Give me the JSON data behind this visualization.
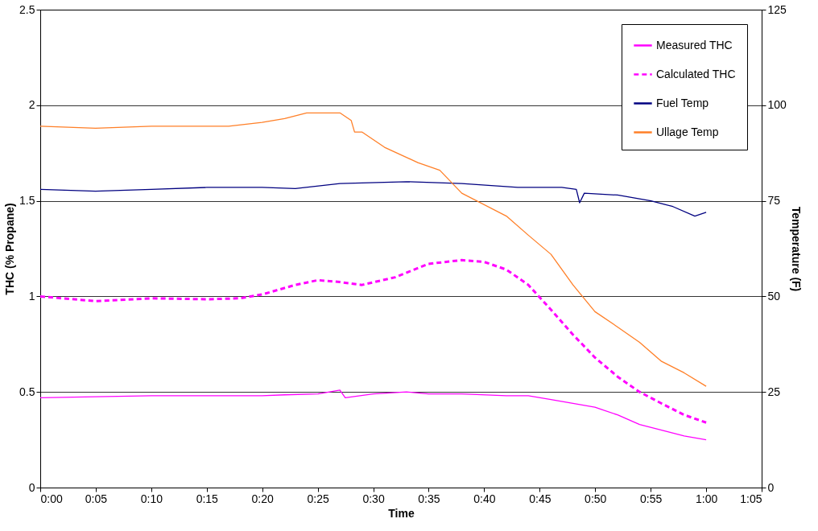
{
  "chart_data": {
    "type": "line",
    "xlabel": "Time",
    "ylabel": "THC (% Propane)",
    "y2label": "Temperature (F)",
    "xlim": [
      0,
      1.0833
    ],
    "xticks": [
      {
        "value": 0,
        "label": "0:00"
      },
      {
        "value": 0.0833,
        "label": "0:05"
      },
      {
        "value": 0.1667,
        "label": "0:10"
      },
      {
        "value": 0.25,
        "label": "0:15"
      },
      {
        "value": 0.3333,
        "label": "0:20"
      },
      {
        "value": 0.4167,
        "label": "0:25"
      },
      {
        "value": 0.5,
        "label": "0:30"
      },
      {
        "value": 0.5833,
        "label": "0:35"
      },
      {
        "value": 0.6667,
        "label": "0:40"
      },
      {
        "value": 0.75,
        "label": "0:45"
      },
      {
        "value": 0.8333,
        "label": "0:50"
      },
      {
        "value": 0.9167,
        "label": "0:55"
      },
      {
        "value": 1,
        "label": "1:00"
      },
      {
        "value": 1.0833,
        "label": "1:05"
      }
    ],
    "ylim": [
      0,
      2.5
    ],
    "yticks": [
      0,
      0.5,
      1,
      1.5,
      2,
      2.5
    ],
    "y2lim": [
      0,
      125
    ],
    "y2ticks": [
      0,
      25,
      50,
      75,
      100,
      125
    ],
    "grid": "y",
    "legend": "top right",
    "series": [
      {
        "name": "Measured THC",
        "color": "#ff00ff",
        "line_style": "solid",
        "x": [
          0,
          0.083,
          0.167,
          0.25,
          0.333,
          0.367,
          0.417,
          0.45,
          0.458,
          0.5,
          0.55,
          0.583,
          0.633,
          0.7,
          0.733,
          0.767,
          0.8,
          0.833,
          0.867,
          0.9,
          0.933,
          0.967,
          1.0
        ],
        "values": [
          0.47,
          0.475,
          0.48,
          0.48,
          0.48,
          0.485,
          0.49,
          0.51,
          0.47,
          0.49,
          0.5,
          0.49,
          0.49,
          0.48,
          0.48,
          0.46,
          0.44,
          0.42,
          0.38,
          0.33,
          0.3,
          0.27,
          0.25
        ]
      },
      {
        "name": "Calculated THC",
        "color": "#ff00ff",
        "line_style": "dashed",
        "x": [
          0,
          0.083,
          0.167,
          0.25,
          0.3,
          0.333,
          0.383,
          0.417,
          0.45,
          0.483,
          0.533,
          0.583,
          0.633,
          0.667,
          0.7,
          0.733,
          0.767,
          0.8,
          0.833,
          0.867,
          0.9,
          0.933,
          0.967,
          1.0
        ],
        "values": [
          1.0,
          0.975,
          0.99,
          0.985,
          0.99,
          1.01,
          1.06,
          1.085,
          1.075,
          1.06,
          1.1,
          1.17,
          1.19,
          1.18,
          1.14,
          1.06,
          0.93,
          0.8,
          0.68,
          0.58,
          0.5,
          0.44,
          0.38,
          0.34
        ]
      },
      {
        "name": "Fuel Temp",
        "color": "#000080",
        "line_style": "solid",
        "axis": "y2",
        "x": [
          0,
          0.083,
          0.167,
          0.25,
          0.333,
          0.383,
          0.45,
          0.55,
          0.633,
          0.717,
          0.783,
          0.805,
          0.81,
          0.817,
          0.867,
          0.917,
          0.95,
          0.983,
          1.0
        ],
        "values": [
          78,
          77.5,
          78,
          78.5,
          78.5,
          78.2,
          79.5,
          80,
          79.5,
          78.5,
          78.5,
          78,
          74.5,
          77,
          76.5,
          75,
          73.5,
          71,
          72
        ]
      },
      {
        "name": "Ullage Temp",
        "color": "#ff7f27",
        "line_style": "solid",
        "axis": "y2",
        "x": [
          0,
          0.083,
          0.167,
          0.283,
          0.333,
          0.367,
          0.4,
          0.45,
          0.467,
          0.472,
          0.483,
          0.517,
          0.567,
          0.6,
          0.633,
          0.7,
          0.733,
          0.767,
          0.8,
          0.833,
          0.867,
          0.9,
          0.933,
          0.967,
          1.0
        ],
        "values": [
          94.5,
          94,
          94.5,
          94.5,
          95.5,
          96.5,
          98,
          98,
          96,
          93,
          93,
          89,
          85,
          83,
          77,
          71,
          66,
          61,
          53,
          46,
          42,
          38,
          33,
          30,
          26.5
        ]
      }
    ]
  }
}
